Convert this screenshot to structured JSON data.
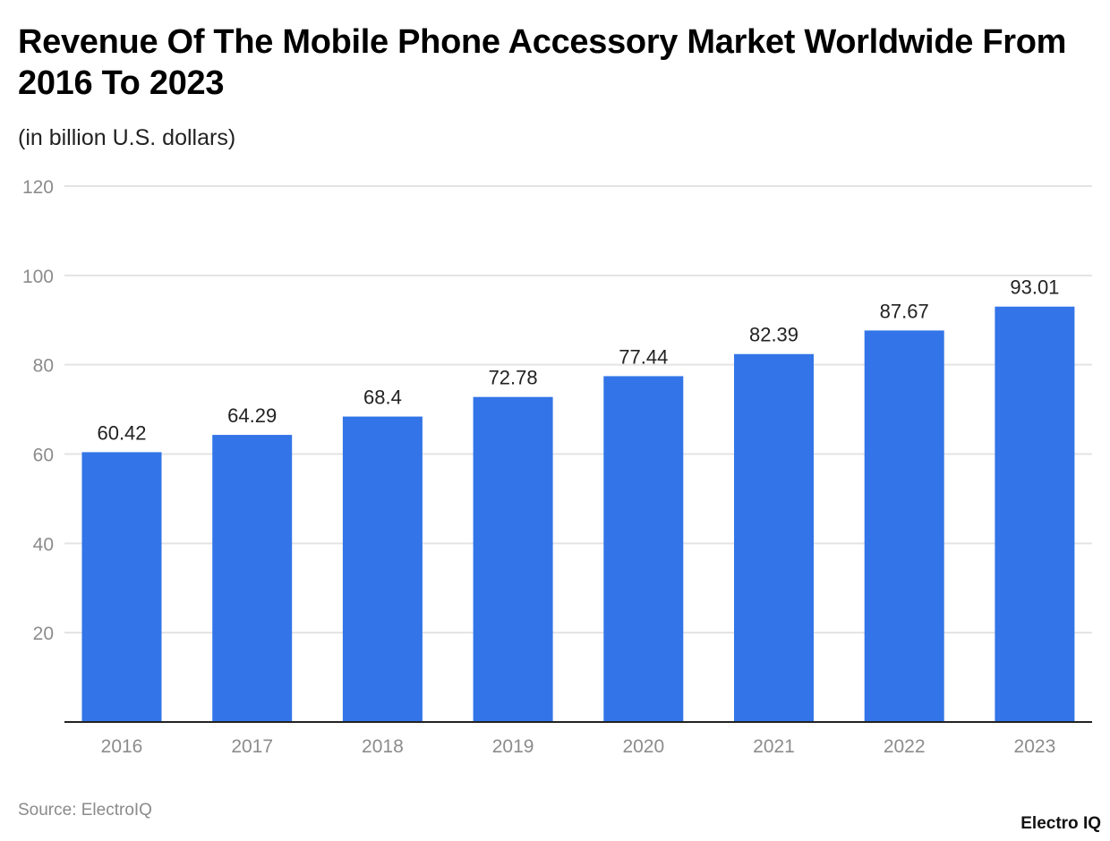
{
  "chart_data": {
    "type": "bar",
    "title": "Revenue Of The Mobile Phone Accessory Market Worldwide From 2016 To 2023",
    "subtitle": "(in billion U.S. dollars)",
    "categories": [
      "2016",
      "2017",
      "2018",
      "2019",
      "2020",
      "2021",
      "2022",
      "2023"
    ],
    "values": [
      60.42,
      64.29,
      68.4,
      72.78,
      77.44,
      82.39,
      87.67,
      93.01
    ],
    "data_labels": [
      "60.42",
      "64.29",
      "68.4",
      "72.78",
      "77.44",
      "82.39",
      "87.67",
      "93.01"
    ],
    "xlabel": "",
    "ylabel": "",
    "ylim": [
      0,
      120
    ],
    "yticks": [
      20,
      40,
      60,
      80,
      100,
      120
    ],
    "grid": true,
    "bar_color": "#3375e8"
  },
  "source": "Source: ElectroIQ",
  "logo": "Electro IQ"
}
